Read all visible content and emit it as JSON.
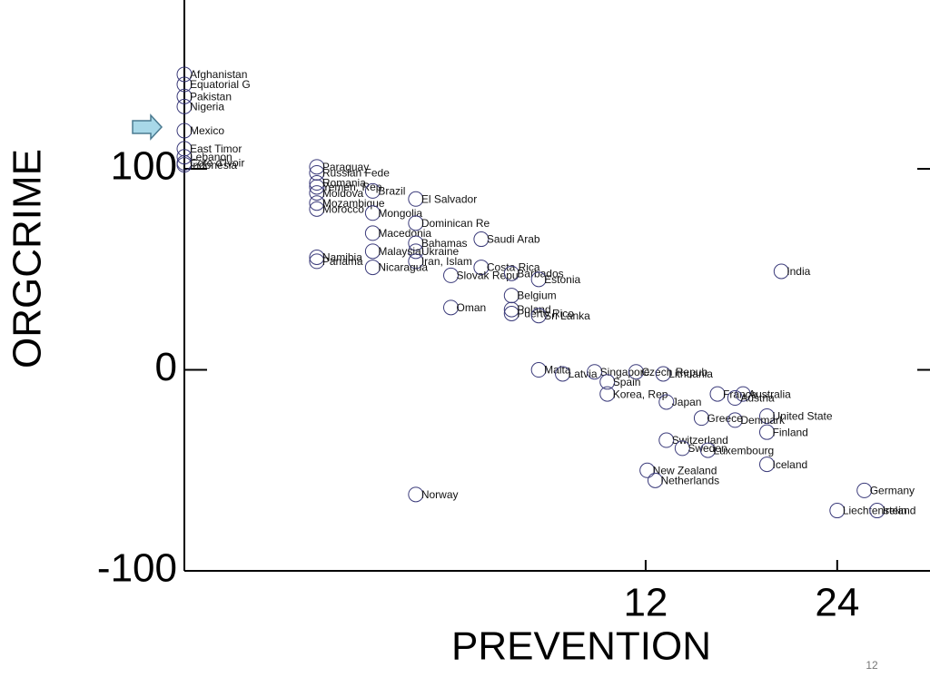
{
  "chart_data": {
    "type": "scatter",
    "x_label": "PREVENTION",
    "y_label": "ORGCRIME",
    "labels": [
      "Afghanistan",
      "Equatorial G",
      "Pakistan",
      "Nigeria",
      "Mexico",
      "East Timor",
      "Lebanon",
      "Cote d'Ivoir",
      "Indonesia",
      "Paraguay",
      "Russian Fede",
      "Yemen, Rep",
      "Romania",
      "Moldova",
      "Brazil",
      "Mozambique",
      "Morocco",
      "El Salvador",
      "Mongolia",
      "Dominican Re",
      "Macedonia",
      "Saudi Arab",
      "Bahamas",
      "Ukraine",
      "Malaysia",
      "Namibia",
      "Panama",
      "Iran, Islam",
      "Nicaragua",
      "Costa Rica",
      "Slovak Repu",
      "Barbados",
      "Estonia",
      "India",
      "Belgium",
      "Oman",
      "Poland",
      "Puerto Rico",
      "Sri Lanka",
      "Malta",
      "Latvia",
      "Singapore",
      "Czech Repub",
      "Lithuania",
      "Spain",
      "Korea, Rep",
      "France",
      "Australia",
      "Austria",
      "Japan",
      "Greece",
      "United State",
      "Denmark",
      "Finland",
      "Switzerland",
      "Sweden",
      "Luxembourg",
      "Iceland",
      "New Zealand",
      "Netherlands",
      "Norway",
      "Germany",
      "Liechtenstein",
      "Ireland"
    ],
    "x": [
      -16.9,
      -16.9,
      -16.9,
      -16.9,
      -16.9,
      -16.9,
      -16.9,
      -16.9,
      -16.9,
      -8.6,
      -8.6,
      -8.6,
      -8.6,
      -8.6,
      -5.1,
      -8.6,
      -8.6,
      -2.4,
      -5.1,
      -2.4,
      -5.1,
      1.7,
      -2.4,
      -2.4,
      -5.1,
      -8.6,
      -8.6,
      -2.4,
      -5.1,
      1.7,
      -0.2,
      3.6,
      5.3,
      20.5,
      3.6,
      -0.2,
      3.6,
      3.6,
      5.3,
      5.3,
      6.8,
      8.8,
      11.4,
      13.1,
      9.6,
      9.6,
      16.5,
      18.1,
      17.6,
      13.3,
      15.5,
      19.6,
      17.6,
      19.6,
      13.3,
      14.3,
      15.9,
      19.6,
      12.1,
      12.6,
      -2.4,
      25.7,
      24,
      26.5
    ],
    "y": [
      147,
      142,
      136,
      131,
      119,
      110,
      106,
      103,
      102,
      101,
      98,
      91,
      93,
      88,
      89,
      83,
      80,
      85,
      78,
      73,
      68,
      65,
      63,
      59,
      59,
      56,
      54,
      54,
      51,
      51,
      47,
      48,
      45,
      49,
      37,
      31,
      30,
      28,
      27,
      0,
      -2,
      -1,
      -1,
      -2,
      -6,
      -12,
      -12,
      -12,
      -14,
      -16,
      -24,
      -23,
      -25,
      -31,
      -35,
      -39,
      -40,
      -47,
      -50,
      -55,
      -62,
      -60,
      -70,
      -70
    ],
    "xlim": [
      -16.9,
      29.7
    ],
    "ylim": [
      -100,
      184
    ],
    "xticks": [
      12,
      24
    ],
    "yticks": [
      -100,
      0,
      100
    ],
    "color": "#3a3a7a"
  },
  "page_number": "12"
}
